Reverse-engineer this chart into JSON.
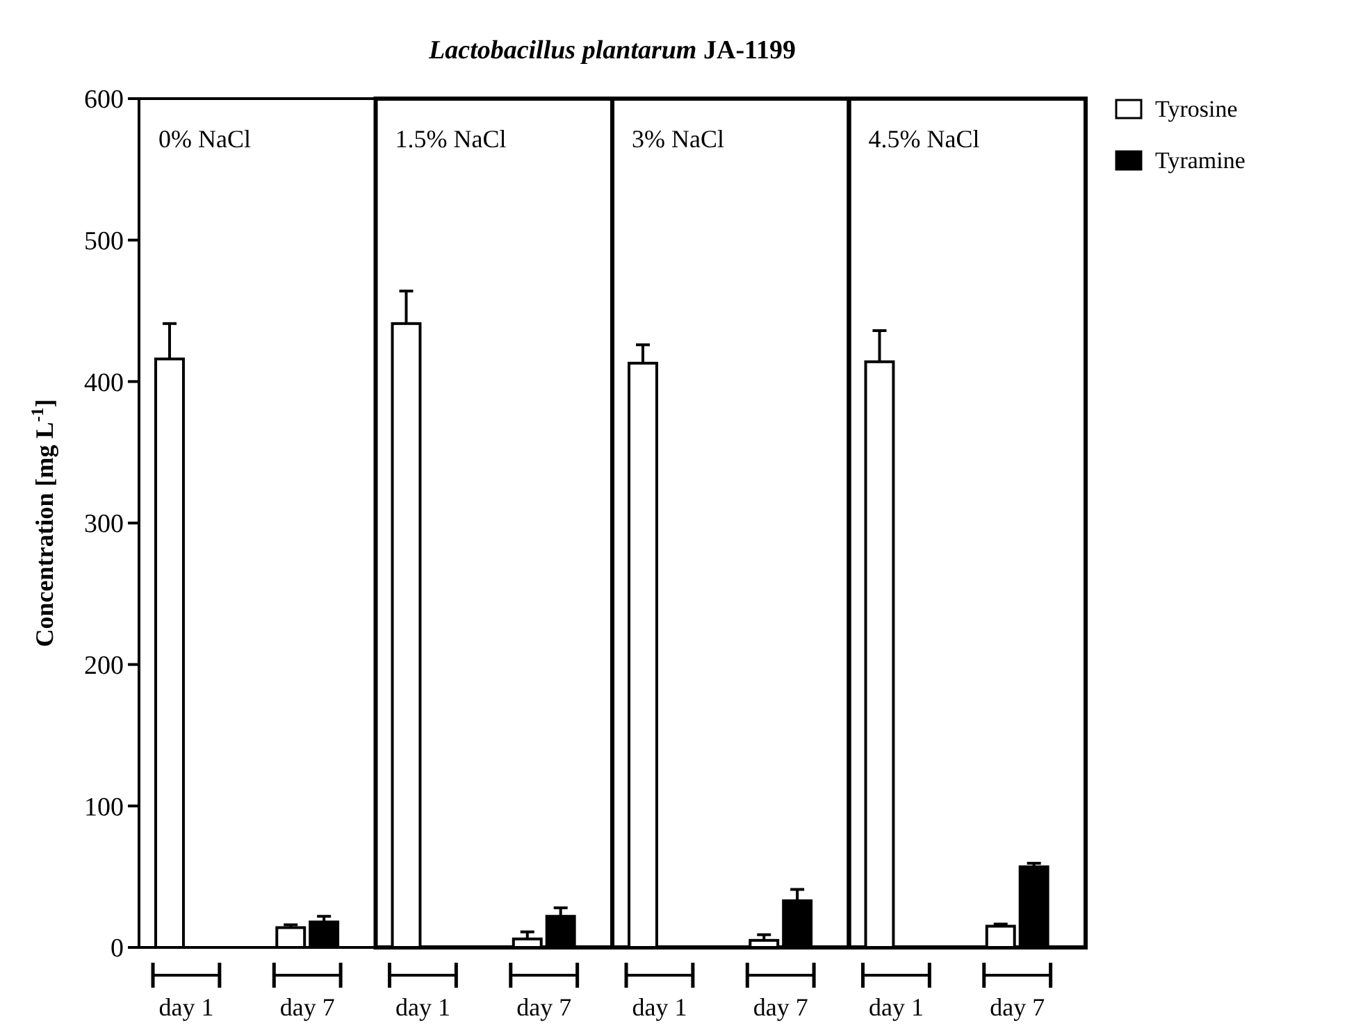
{
  "chart_data": {
    "type": "bar",
    "title": "Lactobacillus plantarum JA-1199",
    "ylabel": "Concentration [mg L$^{-1}$]",
    "annotations": [
      "0% NaCl",
      "1.5% NaCl",
      "3% NaCl",
      "4.5% NaCl"
    ],
    "categories": [
      "day 1",
      "day 7",
      "day 1",
      "day 7",
      "day 1",
      "day 7",
      "day 1",
      "day 7"
    ],
    "ylim": [
      0,
      600
    ],
    "yticks": [
      0,
      100,
      200,
      300,
      400,
      500,
      600
    ],
    "legend": "right",
    "series": [
      {
        "name": "Tyrosine",
        "color": "#ffffff",
        "values": [
          416,
          14,
          441,
          6,
          413,
          5,
          414,
          15
        ],
        "errors": [
          25,
          2,
          23,
          5,
          13,
          4,
          22,
          1.5
        ]
      },
      {
        "name": "Tyramine",
        "color": "#000000",
        "values": [
          null,
          18,
          null,
          22,
          null,
          33,
          null,
          57
        ],
        "errors": [
          null,
          4,
          null,
          6,
          null,
          8,
          null,
          2.5
        ]
      }
    ]
  }
}
